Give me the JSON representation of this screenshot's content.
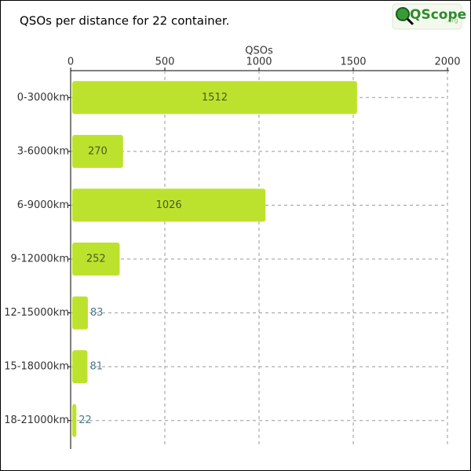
{
  "chart_data": {
    "type": "barh",
    "title": "QSOs per distance for 22 container.",
    "xlabel": "QSOs",
    "categories": [
      "0-3000km",
      "3-6000km",
      "6-9000km",
      "9-12000km",
      "12-15000km",
      "15-18000km",
      "18-21000km"
    ],
    "values": [
      1512,
      270,
      1026,
      252,
      83,
      81,
      22
    ],
    "color": "#bde22e",
    "xlim": [
      0,
      2000
    ],
    "xticks": [
      0,
      500,
      1000,
      1500,
      2000
    ],
    "grid": true
  },
  "logo": {
    "name": "QScope",
    "suffix": ".org"
  }
}
